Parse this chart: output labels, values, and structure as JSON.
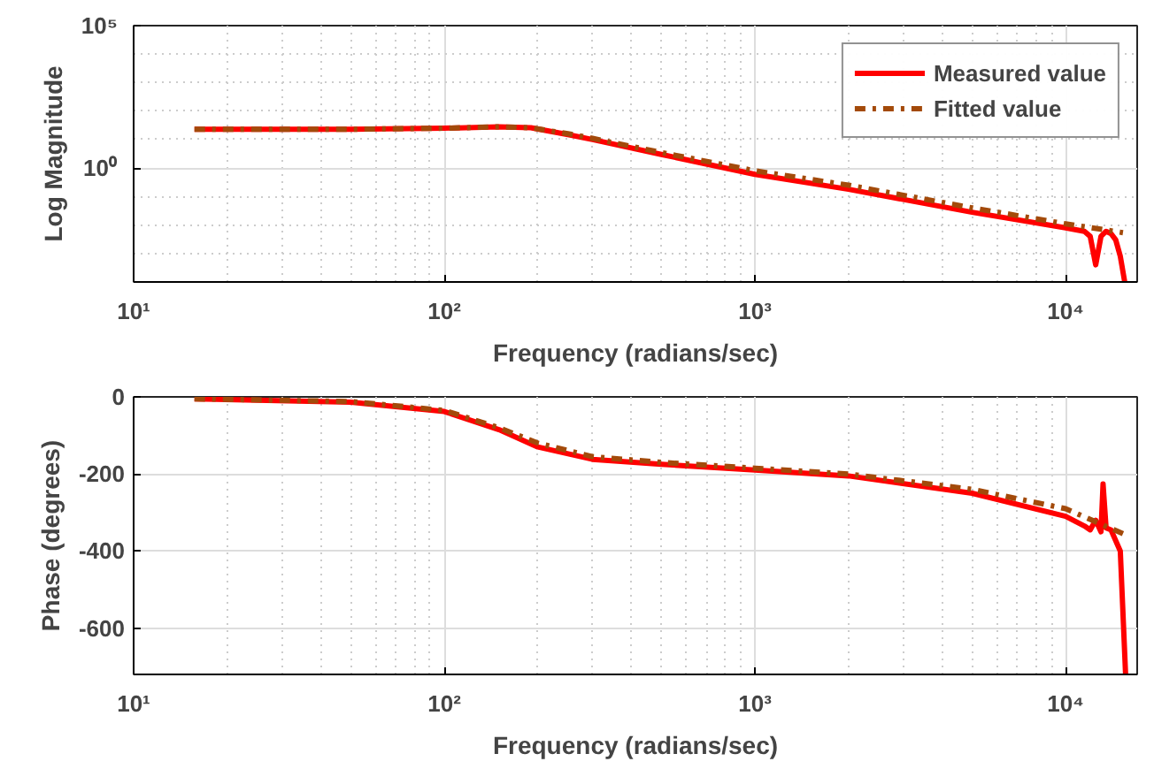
{
  "chart_data": [
    {
      "type": "line",
      "xlabel": "Frequency (radians/sec)",
      "ylabel": "Log Magnitude",
      "log": "xy",
      "grid": true,
      "legend": "top right",
      "xlim": [
        10,
        17000
      ],
      "ylim": [
        0.0001,
        100000
      ],
      "xticks": [
        {
          "value": 10,
          "label": "10¹"
        },
        {
          "value": 100,
          "label": "10²"
        },
        {
          "value": 1000,
          "label": "10³"
        },
        {
          "value": 10000,
          "label": "10⁴"
        }
      ],
      "yticks": [
        {
          "value": 1,
          "label": "10⁰"
        },
        {
          "value": 100000,
          "label": "10⁵"
        }
      ],
      "series": [
        {
          "name": "Measured value",
          "color": "#ff0000",
          "line_style": "solid",
          "x": [
            15.7,
            50,
            100,
            150,
            190,
            250,
            300,
            500,
            1000,
            2000,
            5000,
            10000,
            11500,
            12000,
            12500,
            13000,
            13500,
            14000,
            14500,
            15000,
            15500
          ],
          "values": [
            23,
            23,
            25,
            28,
            26,
            15,
            10,
            3,
            0.6,
            0.18,
            0.028,
            0.008,
            0.006,
            0.004,
            0.0004,
            0.004,
            0.006,
            0.005,
            0.003,
            0.0008,
            0.0001
          ]
        },
        {
          "name": "Fitted value",
          "color": "#a34a0a",
          "line_style": "dashdot",
          "x": [
            15.7,
            50,
            100,
            150,
            190,
            250,
            300,
            500,
            1000,
            2000,
            5000,
            10000,
            15300
          ],
          "values": [
            23,
            23,
            25,
            28,
            26,
            16,
            11,
            3.5,
            0.8,
            0.25,
            0.04,
            0.011,
            0.0054
          ]
        }
      ]
    },
    {
      "type": "line",
      "xlabel": "Frequency (radians/sec)",
      "ylabel": "Phase (degrees)",
      "log": "x",
      "grid": true,
      "xlim": [
        10,
        17000
      ],
      "ylim": [
        -720,
        0
      ],
      "xticks": [
        {
          "value": 10,
          "label": "10¹"
        },
        {
          "value": 100,
          "label": "10²"
        },
        {
          "value": 1000,
          "label": "10³"
        },
        {
          "value": 10000,
          "label": "10⁴"
        }
      ],
      "yticks": [
        -600,
        -400,
        -200,
        0
      ],
      "series": [
        {
          "color": "#ff0000",
          "line_style": "solid",
          "x": [
            15.7,
            50,
            100,
            150,
            200,
            300,
            500,
            1000,
            2000,
            5000,
            10000,
            11500,
            12000,
            12500,
            13000,
            13200,
            13500,
            14000,
            15000,
            15600
          ],
          "values": [
            -5,
            -14,
            -38,
            -85,
            -130,
            -162,
            -175,
            -190,
            -205,
            -250,
            -310,
            -335,
            -345,
            -320,
            -350,
            -226,
            -340,
            -345,
            -400,
            -720
          ]
        },
        {
          "color": "#a34a0a",
          "line_style": "dashdot",
          "x": [
            15.7,
            50,
            100,
            150,
            200,
            300,
            500,
            1000,
            2000,
            5000,
            10000,
            15300
          ],
          "values": [
            -5,
            -12,
            -35,
            -80,
            -120,
            -155,
            -170,
            -185,
            -200,
            -240,
            -290,
            -355
          ]
        }
      ]
    }
  ]
}
